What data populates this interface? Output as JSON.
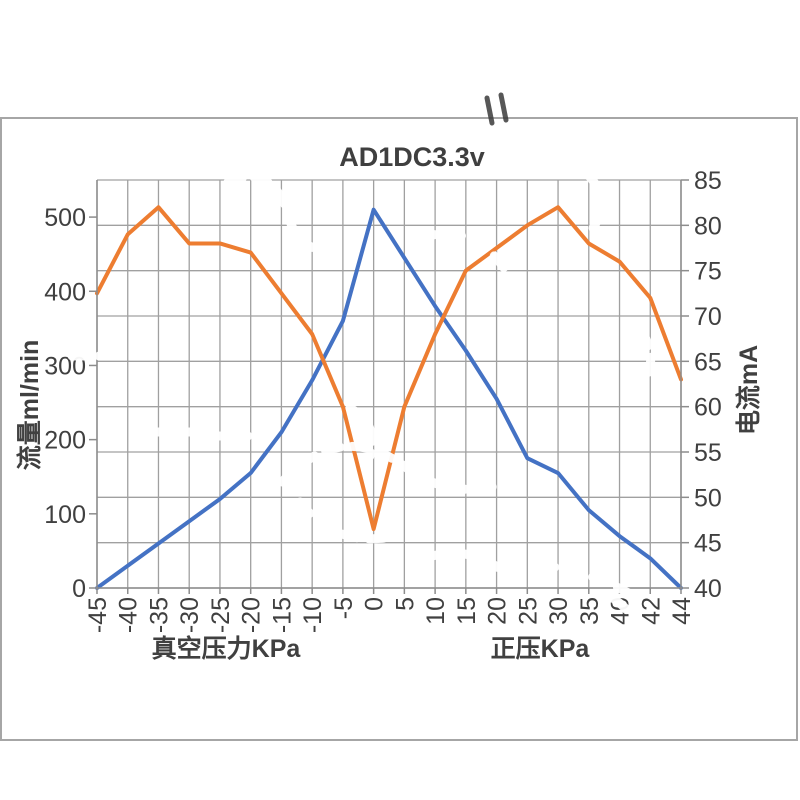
{
  "page": {
    "background": "#ffffff"
  },
  "chart_data": {
    "type": "line",
    "title": "AD1DC3.3v",
    "categories": [
      "-45",
      "-40",
      "-35",
      "-30",
      "-25",
      "-20",
      "-15",
      "-10",
      "-5",
      "0",
      "5",
      "10",
      "15",
      "20",
      "25",
      "30",
      "35",
      "40",
      "42",
      "44"
    ],
    "x_group_labels": [
      {
        "label": "真空压力KPa",
        "span": [
          0,
          9
        ]
      },
      {
        "label": "正压KPa",
        "span": [
          10,
          19
        ]
      }
    ],
    "series": [
      {
        "name": "流量ml/min",
        "axis": "left",
        "color": "#4472c4",
        "values": [
          0,
          30,
          60,
          90,
          120,
          155,
          210,
          280,
          360,
          510,
          445,
          380,
          320,
          255,
          175,
          155,
          105,
          70,
          40,
          0
        ]
      },
      {
        "name": "电流mA",
        "axis": "right",
        "color": "#ed7d31",
        "values": [
          72.5,
          79,
          82,
          78,
          78,
          77,
          72.5,
          68,
          60,
          46.5,
          60,
          68,
          75,
          77.5,
          80,
          82,
          78,
          76,
          72,
          63
        ]
      }
    ],
    "left_axis": {
      "title": "流量ml/min",
      "min": 0,
      "max": 550,
      "tick_step": 100,
      "tick_labels": [
        "0",
        "100",
        "200",
        "300",
        "400",
        "500"
      ]
    },
    "right_axis": {
      "title": "电流mA",
      "min": 40,
      "max": 85,
      "tick_step": 5,
      "tick_labels": [
        "40",
        "45",
        "50",
        "55",
        "60",
        "65",
        "70",
        "75",
        "80",
        "85"
      ]
    },
    "grid": {
      "on": true,
      "color": "#a0a0a0",
      "axis_line_color": "#8c8c8c",
      "text_color": "#404040"
    },
    "legend": "none"
  }
}
